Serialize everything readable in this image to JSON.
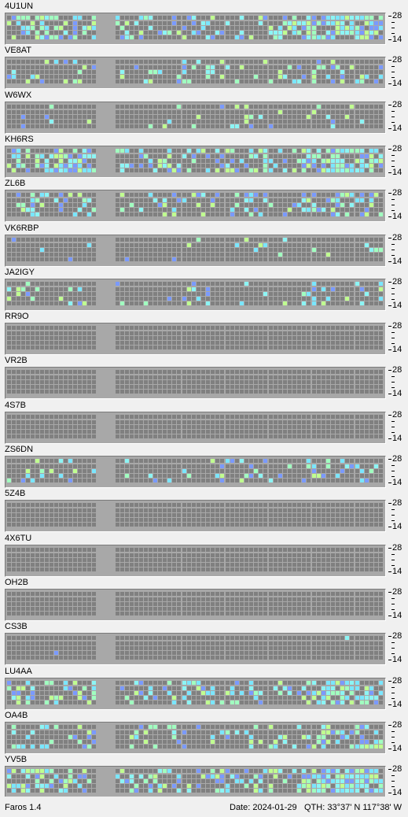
{
  "app": {
    "name": "Faros 1.4"
  },
  "status": {
    "date_text": "Date: 2024-01-29",
    "qth_text": "QTH: 33°37' N  117°38' W"
  },
  "scale": {
    "top_label": "28",
    "bottom_label": "14"
  },
  "colors": {
    "cell_off": "#808080",
    "cell_detected": [
      "#8cf5f5",
      "#7ae6ff",
      "#a0ffc0",
      "#c0ff90",
      "#7a9aff"
    ],
    "grid_bg": "#a8a8a8",
    "window_bg": "#f0f0f0"
  },
  "stations": [
    {
      "callsign": "4U1UN",
      "intensity": 0.55
    },
    {
      "callsign": "VE8AT",
      "intensity": 0.25
    },
    {
      "callsign": "W6WX",
      "intensity": 0.08
    },
    {
      "callsign": "KH6RS",
      "intensity": 0.55
    },
    {
      "callsign": "ZL6B",
      "intensity": 0.35
    },
    {
      "callsign": "VK6RBP",
      "intensity": 0.08
    },
    {
      "callsign": "JA2IGY",
      "intensity": 0.15
    },
    {
      "callsign": "RR9O",
      "intensity": 0
    },
    {
      "callsign": "VR2B",
      "intensity": 0
    },
    {
      "callsign": "4S7B",
      "intensity": 0
    },
    {
      "callsign": "ZS6DN",
      "intensity": 0.15
    },
    {
      "callsign": "5Z4B",
      "intensity": 0
    },
    {
      "callsign": "4X6TU",
      "intensity": 0
    },
    {
      "callsign": "OH2B",
      "intensity": 0
    },
    {
      "callsign": "CS3B",
      "intensity": 0.01
    },
    {
      "callsign": "LU4AA",
      "intensity": 0.4
    },
    {
      "callsign": "OA4B",
      "intensity": 0.3
    },
    {
      "callsign": "YV5B",
      "intensity": 0.6
    }
  ]
}
